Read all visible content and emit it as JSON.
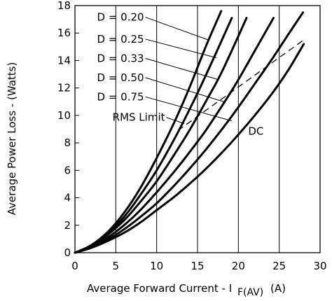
{
  "chart_data": {
    "type": "line",
    "title": "",
    "xlabel": "Average Forward Current - I",
    "xlabel_subscript": "F(AV)",
    "xlabel_unit": "(A)",
    "ylabel": "Average Power Loss - (Watts)",
    "xlim": [
      0,
      30
    ],
    "ylim": [
      0,
      18
    ],
    "xticks": [
      0,
      5,
      10,
      15,
      20,
      25,
      30
    ],
    "yticks": [
      0,
      2,
      4,
      6,
      8,
      10,
      12,
      14,
      16,
      18
    ],
    "grid": "vertical",
    "series": [
      {
        "name": "D = 0.20",
        "x": [
          0,
          2,
          4,
          6,
          8,
          10,
          12,
          14,
          16,
          17.9
        ],
        "y": [
          0,
          0.55,
          1.5,
          2.9,
          4.7,
          6.9,
          9.3,
          12.0,
          15.0,
          17.6
        ]
      },
      {
        "name": "D = 0.25",
        "x": [
          0,
          2,
          4,
          6,
          8,
          10,
          12,
          14,
          16,
          19.2
        ],
        "y": [
          0,
          0.5,
          1.4,
          2.6,
          4.2,
          6.0,
          8.1,
          10.4,
          12.9,
          17.1
        ]
      },
      {
        "name": "D = 0.33",
        "x": [
          0,
          2,
          4,
          6,
          8,
          10,
          12,
          14,
          16,
          18,
          21
        ],
        "y": [
          0,
          0.45,
          1.3,
          2.35,
          3.7,
          5.2,
          7.0,
          8.9,
          11.0,
          13.2,
          17.1
        ]
      },
      {
        "name": "D = 0.50",
        "x": [
          0,
          2,
          4,
          6,
          8,
          10,
          12,
          14,
          16,
          18,
          20,
          22,
          24.3
        ],
        "y": [
          0,
          0.42,
          1.1,
          2.0,
          3.1,
          4.4,
          5.8,
          7.3,
          8.9,
          10.7,
          12.6,
          14.7,
          17.1
        ]
      },
      {
        "name": "D = 0.75",
        "x": [
          0,
          2,
          4,
          6,
          8,
          10,
          12,
          14,
          16,
          18,
          20,
          22,
          24,
          26,
          27.9
        ],
        "y": [
          0,
          0.38,
          0.95,
          1.7,
          2.6,
          3.6,
          4.8,
          6.1,
          7.5,
          9.0,
          10.6,
          12.3,
          14.0,
          15.8,
          17.5
        ]
      },
      {
        "name": "DC",
        "x": [
          0,
          2,
          4,
          6,
          8,
          10,
          12,
          14,
          16,
          18,
          20,
          22,
          24,
          26,
          28
        ],
        "y": [
          0,
          0.35,
          0.85,
          1.45,
          2.2,
          3.1,
          4.0,
          5.0,
          6.1,
          7.3,
          8.6,
          10.0,
          11.5,
          13.2,
          15.2
        ]
      }
    ],
    "rms_limit": {
      "name": "RMS Limit",
      "x": [
        12.6,
        28
      ],
      "y": [
        8.9,
        15.5
      ]
    },
    "labels": {
      "D = 0.20": {
        "anchor": [
          2.7,
          16.9
        ],
        "target": [
          16.3,
          15.5
        ]
      },
      "D = 0.25": {
        "anchor": [
          2.7,
          15.3
        ],
        "target": [
          17.3,
          14.2
        ]
      },
      "D = 0.33": {
        "anchor": [
          2.7,
          13.9
        ],
        "target": [
          17.6,
          12.6
        ]
      },
      "D = 0.50": {
        "anchor": [
          2.7,
          12.5
        ],
        "target": [
          18.2,
          11.0
        ]
      },
      "D = 0.75": {
        "anchor": [
          2.7,
          11.1
        ],
        "target": [
          19.2,
          9.6
        ]
      },
      "RMS Limit": {
        "anchor": [
          4.6,
          9.6
        ],
        "target": [
          13.4,
          9.4
        ]
      },
      "DC": {
        "anchor": [
          21.2,
          8.6
        ],
        "target": null
      }
    }
  }
}
